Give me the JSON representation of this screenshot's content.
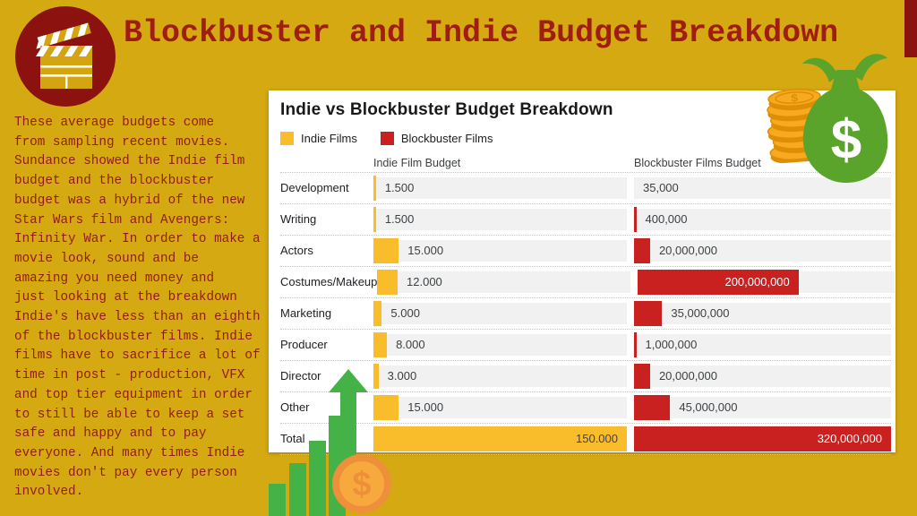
{
  "header": {
    "title": "Blockbuster and Indie Budget Breakdown"
  },
  "sidebar": {
    "description": "These average budgets come\nfrom sampling recent movies.\nSundance showed the Indie film\nbudget and the blockbuster\nbudget was a hybrid of the new\nStar Wars film and Avengers:\nInfinity War. In order to make a\nmovie look, sound and be\namazing you need money and\njust looking at the breakdown\nIndie's have less than an eighth\nof the blockbuster films. Indie\nfilms have to sacrifice a lot of\ntime in post - production, VFX\nand top tier equipment in order\nto still be able to keep a set\nsafe and happy and to pay\neveryone. And many times Indie\nmovies don't pay every person\ninvolved."
  },
  "chart_data": {
    "type": "bar",
    "orientation": "horizontal",
    "title": "Indie vs Blockbuster Budget Breakdown",
    "legend": [
      {
        "label": "Indie Films",
        "color": "#F9BC2B"
      },
      {
        "label": "Blockbuster Films",
        "color": "#C9211F"
      }
    ],
    "categories": [
      "Development",
      "Writing",
      "Actors",
      "Costumes/Makeup",
      "Marketing",
      "Producer",
      "Director",
      "Other",
      "Total"
    ],
    "series": [
      {
        "name": "Indie Film Budget",
        "color": "#F9BC2B",
        "axis_max": 150000,
        "values": [
          1500,
          1500,
          15000,
          12000,
          5000,
          8000,
          3000,
          15000,
          150000
        ],
        "labels": [
          "1.500",
          "1.500",
          "15.000",
          "12.000",
          "5.000",
          "8.000",
          "3.000",
          "15.000",
          "150.000"
        ]
      },
      {
        "name": "Blockbuster Films Budget",
        "color": "#C9211F",
        "axis_max": 320000000,
        "values": [
          35000,
          400000,
          20000000,
          200000000,
          35000000,
          1000000,
          20000000,
          45000000,
          320000000
        ],
        "labels": [
          "35,000",
          "400,000",
          "20,000,000",
          "200,000,000",
          "35,000,000",
          "1,000,000",
          "20,000,000",
          "45,000,000",
          "320,000,000"
        ]
      }
    ],
    "grid": "dotted-row-separators",
    "value_labels_visible": true,
    "legend_position": "top-left"
  },
  "decorations": {
    "money_bag_symbol": "$",
    "coin_stack_symbol": "$",
    "coin_symbol": "$"
  },
  "icons": {
    "clapperboard": "clapperboard-icon",
    "money_bag": "money-bag-icon",
    "coin_stack": "coin-stack-icon",
    "growth_arrow": "growth-arrow-icon",
    "growth_bars": "bar-chart-icon",
    "coin": "coin-icon"
  },
  "colors": {
    "background": "#D5A912",
    "maroon_accent": "#8C1210",
    "title_red": "#A01D12",
    "paragraph_red": "#941C0F",
    "indie_yellow": "#F9BC2B",
    "blockbuster_red": "#C9211F",
    "bar_track_gray": "#F1F1F1",
    "growth_green": "#45B247",
    "bag_green": "#5AA42C",
    "coin_light": "#F7A91F",
    "coin_dark": "#DD8E05",
    "big_coin_ring": "#EE8F3A",
    "big_coin_face": "#F8A93E"
  }
}
